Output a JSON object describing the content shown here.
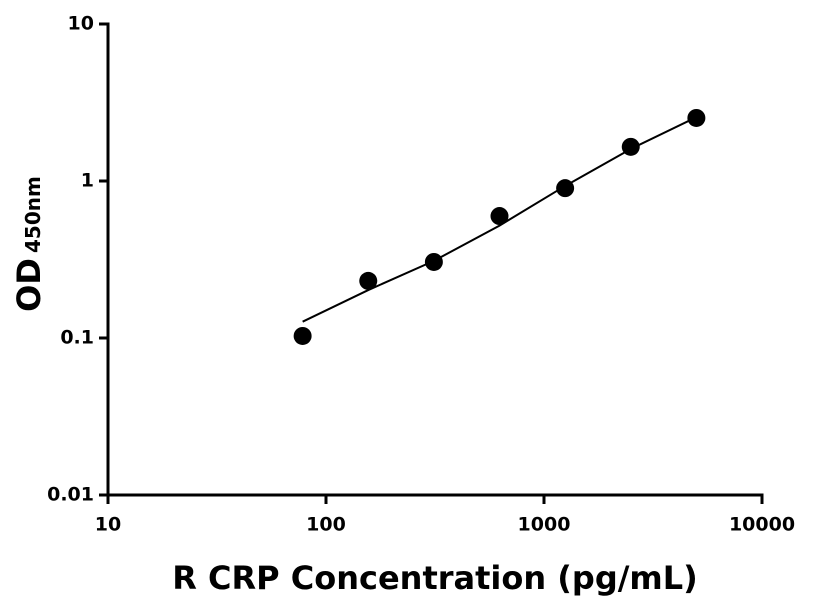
{
  "chart_data": {
    "type": "scatter",
    "xlabel": "R CRP Concentration (pg/mL)",
    "ylabel": "OD",
    "ylabel_sub": "450nm",
    "x": [
      78.125,
      156.25,
      312.5,
      625,
      1250,
      2500,
      5000
    ],
    "values": [
      0.103,
      0.231,
      0.305,
      0.598,
      0.9,
      1.65,
      2.52
    ],
    "color": "#000000",
    "fit": {
      "x": [
        78.125,
        156.25,
        312.5,
        625,
        1250,
        2500,
        5000
      ],
      "values": [
        0.127,
        0.202,
        0.31,
        0.52,
        0.93,
        1.6,
        2.55
      ]
    },
    "xscale": "log",
    "yscale": "log",
    "xlim": [
      10,
      10000
    ],
    "ylim": [
      0.01,
      10
    ],
    "xticks": [
      10,
      100,
      1000,
      10000
    ],
    "yticks": [
      0.01,
      0.1,
      1,
      10
    ],
    "grid": false
  }
}
